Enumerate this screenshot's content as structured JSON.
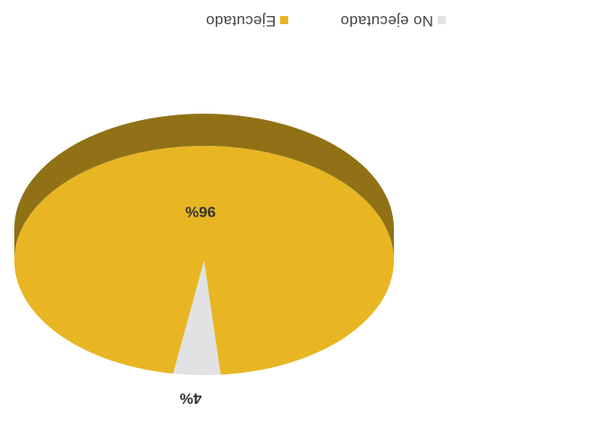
{
  "chart_data": {
    "type": "pie",
    "title": "",
    "slices": [
      {
        "label": "No ejecutado",
        "value": 4,
        "data_label": "4%",
        "color": "#e2e2e4"
      },
      {
        "label": "Ejecutado",
        "value": 96,
        "data_label": "96%",
        "color": "#e8b623"
      }
    ],
    "legend_position": "top",
    "three_d": true,
    "image_rotation": "180deg"
  }
}
